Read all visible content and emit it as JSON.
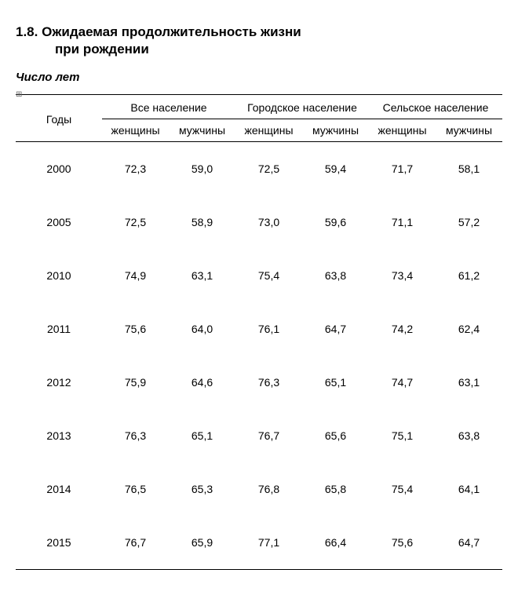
{
  "heading": {
    "number": "1.8.",
    "title_line1": "Ожидаемая продолжительность жизни",
    "title_line2": "при рождении"
  },
  "units_label": "Число лет",
  "small_marker": "⊞",
  "table": {
    "type": "table",
    "year_header": "Годы",
    "groups": [
      {
        "title": "Все население",
        "sub": [
          "женщины",
          "мужчины"
        ]
      },
      {
        "title": "Городское население",
        "sub": [
          "женщины",
          "мужчины"
        ]
      },
      {
        "title": "Сельское население",
        "sub": [
          "женщины",
          "мужчины"
        ]
      }
    ],
    "rows": [
      {
        "year": "2000",
        "v": [
          "72,3",
          "59,0",
          "72,5",
          "59,4",
          "71,7",
          "58,1"
        ]
      },
      {
        "year": "2005",
        "v": [
          "72,5",
          "58,9",
          "73,0",
          "59,6",
          "71,1",
          "57,2"
        ]
      },
      {
        "year": "2010",
        "v": [
          "74,9",
          "63,1",
          "75,4",
          "63,8",
          "73,4",
          "61,2"
        ]
      },
      {
        "year": "2011",
        "v": [
          "75,6",
          "64,0",
          "76,1",
          "64,7",
          "74,2",
          "62,4"
        ]
      },
      {
        "year": "2012",
        "v": [
          "75,9",
          "64,6",
          "76,3",
          "65,1",
          "74,7",
          "63,1"
        ]
      },
      {
        "year": "2013",
        "v": [
          "76,3",
          "65,1",
          "76,7",
          "65,6",
          "75,1",
          "63,8"
        ]
      },
      {
        "year": "2014",
        "v": [
          "76,5",
          "65,3",
          "76,8",
          "65,8",
          "75,4",
          "64,1"
        ]
      },
      {
        "year": "2015",
        "v": [
          "76,7",
          "65,9",
          "77,1",
          "66,4",
          "75,6",
          "64,7"
        ]
      }
    ],
    "font_size_pt": 11,
    "rule_color": "#000000",
    "background_color": "#ffffff"
  }
}
